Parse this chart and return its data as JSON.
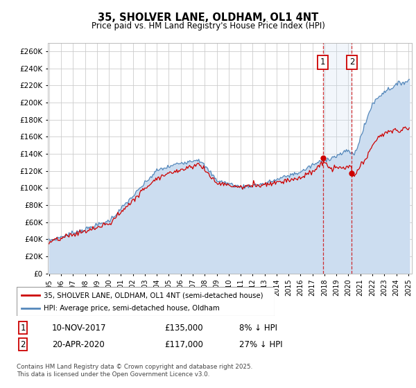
{
  "title": "35, SHOLVER LANE, OLDHAM, OL1 4NT",
  "subtitle": "Price paid vs. HM Land Registry's House Price Index (HPI)",
  "ylim": [
    0,
    270000
  ],
  "yticks": [
    0,
    20000,
    40000,
    60000,
    80000,
    100000,
    120000,
    140000,
    160000,
    180000,
    200000,
    220000,
    240000,
    260000
  ],
  "ytick_labels": [
    "£0",
    "£20K",
    "£40K",
    "£60K",
    "£80K",
    "£100K",
    "£120K",
    "£140K",
    "£160K",
    "£180K",
    "£200K",
    "£220K",
    "£240K",
    "£260K"
  ],
  "xlim_start": 1994.9,
  "xlim_end": 2025.3,
  "hpi_color": "#5588bb",
  "hpi_fill_color": "#ccddf0",
  "price_color": "#cc0000",
  "marker1_date": 2017.86,
  "marker1_price": 135000,
  "marker2_date": 2020.29,
  "marker2_price": 117000,
  "legend_line1": "35, SHOLVER LANE, OLDHAM, OL1 4NT (semi-detached house)",
  "legend_line2": "HPI: Average price, semi-detached house, Oldham",
  "footnote": "Contains HM Land Registry data © Crown copyright and database right 2025.\nThis data is licensed under the Open Government Licence v3.0.",
  "bg_color": "#ffffff",
  "grid_color": "#cccccc"
}
